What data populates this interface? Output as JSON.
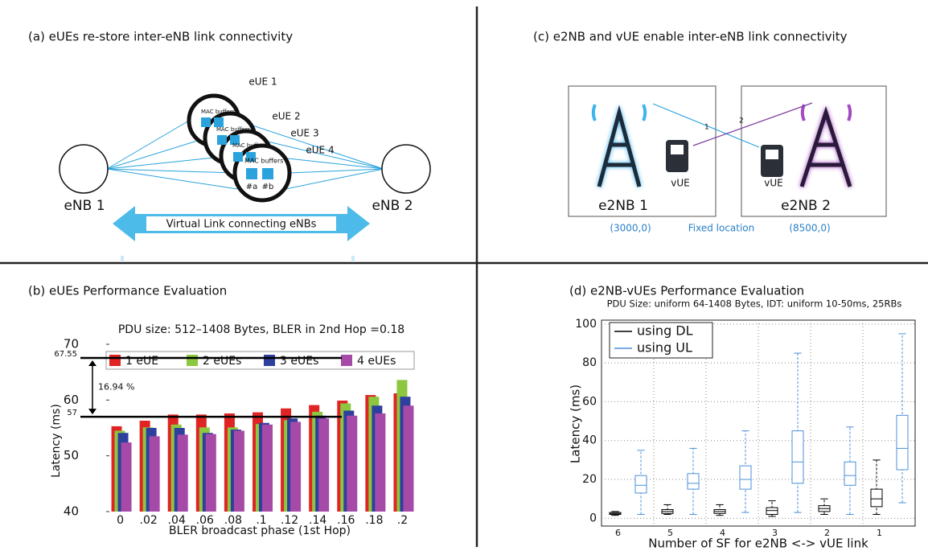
{
  "panel_a": {
    "title": "(a) eUEs re-store inter-eNB link connectivity",
    "eues": [
      "eUE 1",
      "eUE 2",
      "eUE 3",
      "eUE 4"
    ],
    "buffer_label": "MAC buffers",
    "buffer_a": "#a",
    "buffer_b": "#b",
    "enb_left": "eNB 1",
    "enb_right": "eNB 2",
    "virtual_link": "Virtual Link connecting eNBs"
  },
  "panel_c": {
    "title": "(c) e2NB and vUE enable inter-eNB link connectivity",
    "e2nb_left": "e2NB 1",
    "e2nb_right": "e2NB 2",
    "vue": "vUE",
    "link_1": "1",
    "link_2": "2",
    "coord_left": "(3000,0)",
    "fixed": "Fixed location",
    "coord_right": "(8500,0)"
  },
  "chart_data": [
    {
      "type": "bar",
      "title": "(b) eUEs Performance Evaluation",
      "subtitle": "PDU size: 512–1408 Bytes, BLER in 2nd Hop =0.18",
      "xlabel": "BLER broadcast phase (1st Hop)",
      "ylabel": "Latency (ms)",
      "categories": [
        "0",
        ".02",
        ".04",
        ".06",
        ".08",
        ".1",
        ".12",
        ".14",
        ".16",
        ".18",
        ".2"
      ],
      "series": [
        {
          "name": "1 eUE",
          "color": "#e02424",
          "values": [
            55.3,
            56.3,
            57.4,
            57.4,
            57.6,
            57.8,
            58.5,
            59.1,
            59.9,
            60.9,
            61.2
          ]
        },
        {
          "name": "2 eUEs",
          "color": "#8dc63f",
          "values": [
            54.5,
            55.1,
            55.6,
            55.1,
            55.1,
            55.7,
            56.4,
            57.9,
            59.4,
            60.6,
            63.6
          ]
        },
        {
          "name": "3 eUEs",
          "color": "#2e3f9e",
          "values": [
            54.1,
            55.0,
            55.0,
            54.1,
            54.7,
            55.9,
            56.7,
            57.2,
            58.1,
            59.0,
            60.6
          ]
        },
        {
          "name": "4 eUEs",
          "color": "#a64aa8",
          "values": [
            52.4,
            53.5,
            53.8,
            53.9,
            54.5,
            55.6,
            56.1,
            56.7,
            57.2,
            57.6,
            59.0
          ]
        }
      ],
      "ylim": [
        40,
        70
      ],
      "yticks": [
        40,
        50,
        60,
        70
      ],
      "reference_lines": [
        {
          "value": 67.55,
          "label": "67.55"
        },
        {
          "value": 57,
          "label": "57"
        }
      ],
      "annotation": "16.94 %"
    },
    {
      "type": "box",
      "title": "(d) e2NB-vUEs Performance Evaluation",
      "subtitle": "PDU Size: uniform 64-1408 Bytes, IDT: uniform 10-50ms, 25RBs",
      "xlabel": "Number of SF for e2NB <-> vUE link",
      "ylabel": "Latency (ms)",
      "categories": [
        "6",
        "5",
        "4",
        "3",
        "2",
        "1"
      ],
      "series": [
        {
          "name": "using DL",
          "color": "#000000",
          "low": [
            1.5,
            2,
            1.5,
            1,
            2,
            2
          ],
          "q1": [
            2,
            2.5,
            2.5,
            2,
            3.5,
            6
          ],
          "median": [
            2.5,
            3.5,
            3.5,
            4,
            5,
            10
          ],
          "q3": [
            3,
            4.5,
            4.5,
            5.5,
            6.5,
            15
          ],
          "high": [
            3.5,
            7,
            7,
            9,
            10,
            30
          ]
        },
        {
          "name": "using UL",
          "color": "#4a90d9",
          "low": [
            2,
            2,
            3,
            3,
            2,
            8
          ],
          "q1": [
            13,
            15,
            15,
            18,
            17,
            25
          ],
          "median": [
            17,
            18,
            20,
            29,
            22,
            36
          ],
          "q3": [
            22,
            23,
            27,
            45,
            29,
            53
          ],
          "high": [
            35,
            36,
            45,
            85,
            47,
            95
          ]
        }
      ],
      "ylim": [
        -4,
        102
      ],
      "yticks": [
        0,
        20,
        40,
        60,
        80,
        100
      ],
      "grid": true,
      "legend": "upper left"
    }
  ]
}
